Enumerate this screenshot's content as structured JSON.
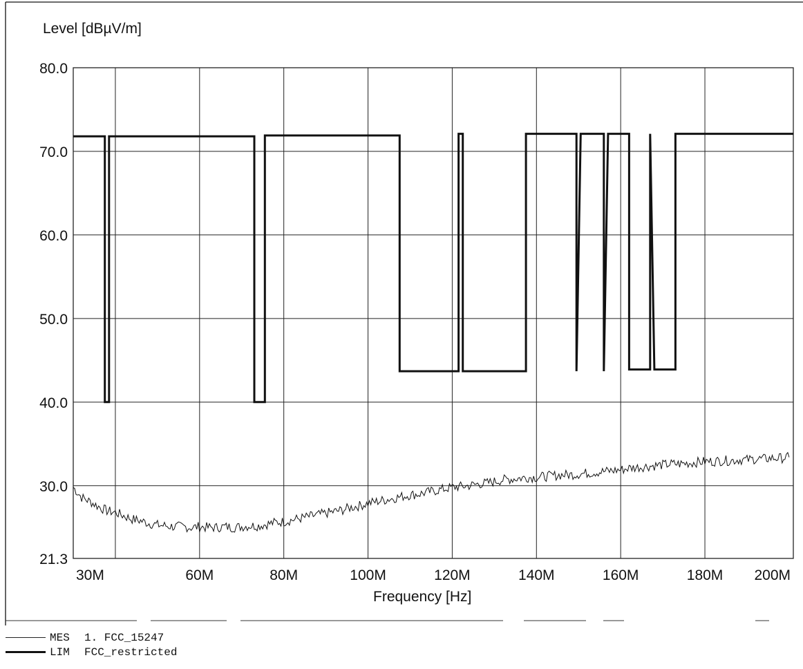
{
  "chart_data": {
    "type": "line",
    "ylabel": "Level [dBµV/m]",
    "xlabel": "Frequency [Hz]",
    "xlim": [
      30,
      201
    ],
    "ylim": [
      21.3,
      80.0
    ],
    "x_scale": "linear",
    "grid": true,
    "y_ticks": [
      {
        "value": 80.0,
        "label": "80.0"
      },
      {
        "value": 70.0,
        "label": "70.0"
      },
      {
        "value": 60.0,
        "label": "60.0"
      },
      {
        "value": 50.0,
        "label": "50.0"
      },
      {
        "value": 40.0,
        "label": "40.0"
      },
      {
        "value": 30.0,
        "label": "30.0"
      },
      {
        "value": 21.3,
        "label": "21.3"
      }
    ],
    "x_ticks": [
      {
        "value": 30,
        "label": "30M"
      },
      {
        "value": 60,
        "label": "60M"
      },
      {
        "value": 80,
        "label": "80M"
      },
      {
        "value": 100,
        "label": "100M"
      },
      {
        "value": 120,
        "label": "120M"
      },
      {
        "value": 140,
        "label": "140M"
      },
      {
        "value": 160,
        "label": "160M"
      },
      {
        "value": 180,
        "label": "180M"
      },
      {
        "value": 200,
        "label": "200M"
      }
    ],
    "x_gridlines": [
      40,
      60,
      80,
      100,
      120,
      140,
      160,
      180
    ],
    "y_gridlines": [
      70.0,
      60.0,
      50.0,
      40.0,
      30.0
    ],
    "series": [
      {
        "name": "FCC_restricted",
        "legend_tag": "LIM",
        "style": "thick",
        "x": [
          30,
          37.5,
          37.5,
          38.5,
          38.5,
          73,
          73,
          75.5,
          75.5,
          107.5,
          107.5,
          121.5,
          121.5,
          122.5,
          122.5,
          137.5,
          137.5,
          149.5,
          149.5,
          150.5,
          150.5,
          156,
          156,
          157,
          157,
          162,
          162,
          167,
          167,
          168,
          168,
          173,
          173,
          201
        ],
        "values": [
          71.8,
          71.8,
          40.0,
          40.0,
          71.8,
          71.8,
          40.0,
          40.0,
          71.9,
          71.9,
          43.7,
          43.7,
          72.1,
          72.1,
          43.7,
          43.7,
          72.1,
          72.1,
          43.7,
          72.1,
          72.1,
          72.1,
          43.7,
          72.1,
          72.1,
          72.1,
          43.9,
          43.9,
          72.1,
          43.9,
          43.9,
          43.9,
          72.1,
          72.1
        ]
      },
      {
        "name": "1. FCC_15247",
        "legend_tag": "MES",
        "style": "thin",
        "x": [
          30,
          32,
          34,
          36,
          38,
          40,
          42,
          44,
          46,
          48,
          50,
          52,
          54,
          56,
          58,
          60,
          62,
          64,
          66,
          68,
          70,
          72,
          74,
          76,
          78,
          80,
          82,
          84,
          86,
          88,
          90,
          92,
          94,
          96,
          98,
          100,
          102,
          104,
          106,
          108,
          110,
          112,
          114,
          116,
          118,
          120,
          122,
          124,
          126,
          128,
          130,
          132,
          134,
          136,
          138,
          140,
          142,
          144,
          146,
          148,
          150,
          152,
          154,
          156,
          158,
          160,
          162,
          164,
          166,
          168,
          170,
          172,
          174,
          176,
          178,
          180,
          182,
          184,
          186,
          188,
          190,
          192,
          194,
          196,
          198,
          200
        ],
        "values": [
          29.8,
          28.6,
          28.1,
          27.5,
          27.0,
          26.8,
          26.4,
          26.0,
          25.8,
          25.5,
          25.3,
          25.2,
          25.1,
          25.1,
          25.0,
          25.1,
          25.0,
          25.0,
          25.1,
          25.0,
          25.1,
          25.2,
          25.2,
          25.4,
          25.6,
          25.7,
          25.9,
          26.1,
          26.3,
          26.5,
          26.7,
          26.9,
          27.1,
          27.4,
          27.6,
          27.9,
          28.1,
          28.3,
          28.5,
          28.7,
          28.9,
          29.0,
          29.2,
          29.4,
          29.6,
          29.8,
          29.9,
          30.0,
          30.2,
          30.3,
          30.5,
          30.7,
          30.8,
          30.9,
          31.0,
          31.0,
          31.1,
          31.2,
          31.3,
          31.3,
          31.4,
          31.5,
          31.6,
          31.7,
          31.8,
          31.9,
          32.1,
          32.2,
          32.3,
          32.4,
          32.5,
          32.6,
          32.6,
          32.7,
          32.8,
          32.9,
          32.9,
          33.0,
          33.0,
          33.1,
          33.1,
          33.2,
          33.2,
          33.3,
          33.3,
          33.4
        ]
      }
    ]
  },
  "legend": [
    {
      "tag": "MES",
      "name": "1. FCC_15247",
      "style": "thin"
    },
    {
      "tag": "LIM",
      "name": "FCC_restricted",
      "style": "thick"
    }
  ],
  "colors": {
    "line": "#111111",
    "grid": "#222222",
    "background": "#ffffff"
  }
}
